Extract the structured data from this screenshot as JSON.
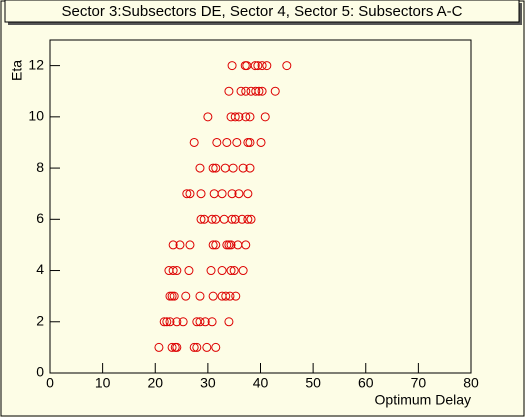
{
  "chart_data": {
    "type": "scatter",
    "title": "Sector 3:Subsectors DE, Sector 4, Sector 5: Subsectors A-C",
    "x_label": "Optimum Delay",
    "y_label": "Eta",
    "color": "#dd0000",
    "x": [
      34.6,
      37.1,
      37.4,
      39.0,
      39.5,
      40.3,
      41.2,
      45.0,
      34.0,
      36.3,
      37.2,
      38.2,
      39.1,
      39.7,
      40.3,
      42.8,
      30.0,
      34.4,
      35.2,
      35.9,
      37.2,
      38.0,
      40.9,
      27.4,
      31.7,
      33.6,
      35.5,
      37.6,
      38.0,
      40.1,
      28.5,
      31.0,
      31.5,
      33.3,
      34.8,
      36.7,
      38.0,
      26.0,
      26.6,
      28.7,
      31.2,
      32.7,
      34.6,
      35.9,
      37.6,
      28.7,
      29.3,
      30.8,
      31.5,
      33.1,
      34.6,
      35.2,
      36.5,
      37.6,
      38.2,
      23.4,
      24.7,
      26.6,
      31.0,
      31.5,
      33.6,
      34.0,
      34.4,
      35.7,
      37.2,
      22.6,
      23.4,
      24.1,
      26.4,
      30.6,
      32.7,
      34.4,
      35.0,
      36.7,
      22.8,
      23.2,
      23.6,
      25.8,
      28.5,
      31.0,
      32.7,
      33.4,
      34.2,
      35.3,
      21.7,
      22.2,
      22.8,
      24.1,
      25.3,
      27.9,
      28.5,
      29.5,
      30.8,
      34.0,
      20.7,
      23.2,
      23.8,
      24.1,
      27.4,
      27.9,
      29.8,
      31.5
    ],
    "values": [
      12,
      12,
      12,
      12,
      12,
      12,
      12,
      12,
      11,
      11,
      11,
      11,
      11,
      11,
      11,
      11,
      10,
      10,
      10,
      10,
      10,
      10,
      10,
      9,
      9,
      9,
      9,
      9,
      9,
      9,
      8,
      8,
      8,
      8,
      8,
      8,
      8,
      7,
      7,
      7,
      7,
      7,
      7,
      7,
      7,
      6,
      6,
      6,
      6,
      6,
      6,
      6,
      6,
      6,
      6,
      5,
      5,
      5,
      5,
      5,
      5,
      5,
      5,
      5,
      5,
      4,
      4,
      4,
      4,
      4,
      4,
      4,
      4,
      4,
      3,
      3,
      3,
      3,
      3,
      3,
      3,
      3,
      3,
      3,
      2,
      2,
      2,
      2,
      2,
      2,
      2,
      2,
      2,
      2,
      1,
      1,
      1,
      1,
      1,
      1,
      1,
      1
    ],
    "xlim": [
      0,
      80
    ],
    "xticks": [
      0,
      10,
      20,
      30,
      40,
      50,
      60,
      70,
      80
    ],
    "ylim": [
      0,
      13
    ],
    "yticks": [
      0,
      2,
      4,
      6,
      8,
      10,
      12
    ]
  }
}
